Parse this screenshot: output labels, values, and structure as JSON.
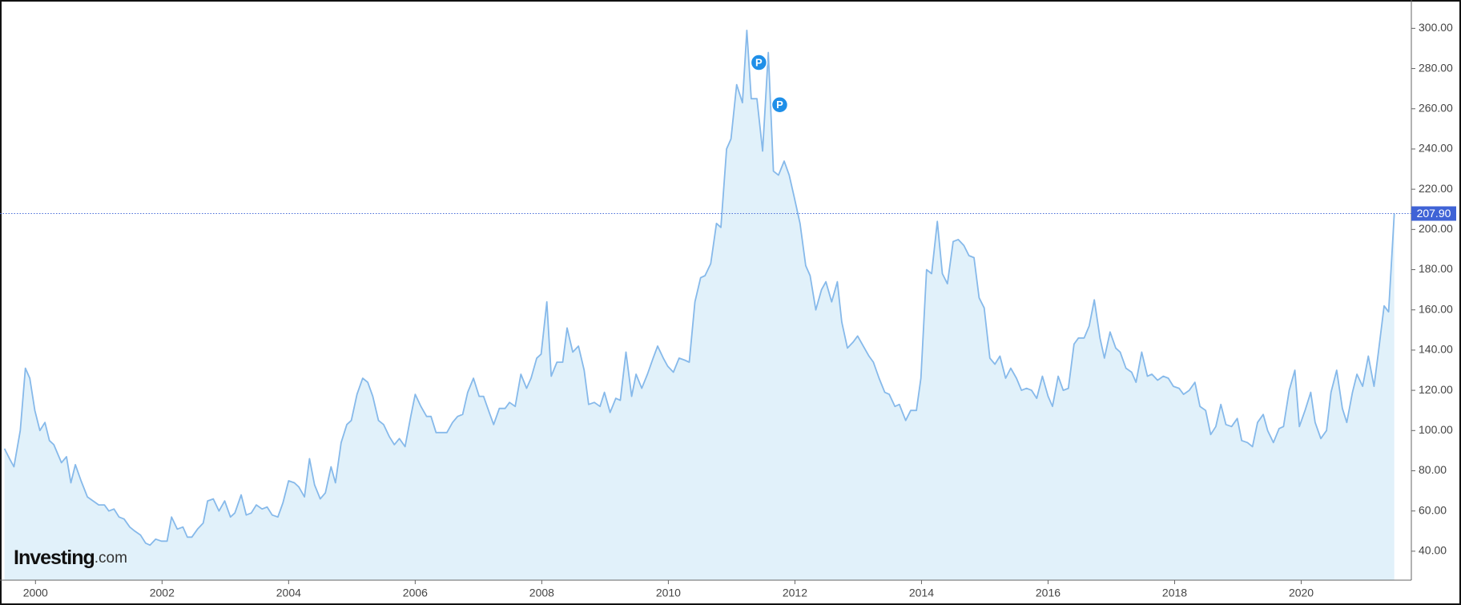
{
  "chart_data": {
    "type": "area",
    "watermark": [
      "Investing",
      ".com"
    ],
    "color": "#86b9ea",
    "fill_color": "#e1f1fa",
    "x": [
      1999.51,
      1999.59,
      1999.66,
      1999.76,
      1999.84,
      1999.91,
      1999.99,
      2000.07,
      2000.15,
      2000.22,
      2000.29,
      2000.41,
      2000.49,
      2000.56,
      2000.63,
      2000.72,
      2000.82,
      2000.91,
      2001.0,
      2001.09,
      2001.16,
      2001.24,
      2001.32,
      2001.4,
      2001.49,
      2001.57,
      2001.66,
      2001.74,
      2001.81,
      2001.9,
      2001.99,
      2002.08,
      2002.15,
      2002.24,
      2002.33,
      2002.4,
      2002.47,
      2002.56,
      2002.65,
      2002.72,
      2002.81,
      2002.9,
      2002.99,
      2003.08,
      2003.15,
      2003.25,
      2003.33,
      2003.41,
      2003.49,
      2003.58,
      2003.66,
      2003.74,
      2003.83,
      2003.91,
      2004.0,
      2004.09,
      2004.16,
      2004.25,
      2004.33,
      2004.41,
      2004.5,
      2004.58,
      2004.67,
      2004.74,
      2004.83,
      2004.92,
      2004.99,
      2005.08,
      2005.17,
      2005.25,
      2005.33,
      2005.42,
      2005.5,
      2005.59,
      2005.67,
      2005.75,
      2005.84,
      2005.93,
      2006.0,
      2006.09,
      2006.18,
      2006.25,
      2006.33,
      2006.42,
      2006.5,
      2006.59,
      2006.67,
      2006.75,
      2006.83,
      2006.92,
      2007.01,
      2007.08,
      2007.17,
      2007.24,
      2007.33,
      2007.42,
      2007.49,
      2007.58,
      2007.67,
      2007.76,
      2007.83,
      2007.92,
      2007.99,
      2008.08,
      2008.15,
      2008.24,
      2008.33,
      2008.4,
      2008.49,
      2008.58,
      2008.67,
      2008.74,
      2008.83,
      2008.92,
      2008.99,
      2009.08,
      2009.17,
      2009.24,
      2009.33,
      2009.42,
      2009.49,
      2009.58,
      2009.67,
      2009.76,
      2009.83,
      2009.92,
      2009.99,
      2010.08,
      2010.17,
      2010.26,
      2010.33,
      2010.42,
      2010.51,
      2010.58,
      2010.67,
      2010.76,
      2010.83,
      2010.92,
      2010.99,
      2011.08,
      2011.17,
      2011.24,
      2011.31,
      2011.4,
      2011.49,
      2011.58,
      2011.66,
      2011.74,
      2011.83,
      2011.91,
      2011.99,
      2012.08,
      2012.17,
      2012.24,
      2012.33,
      2012.42,
      2012.49,
      2012.58,
      2012.67,
      2012.74,
      2012.83,
      2012.92,
      2012.99,
      2013.08,
      2013.17,
      2013.24,
      2013.33,
      2013.42,
      2013.49,
      2013.58,
      2013.65,
      2013.75,
      2013.83,
      2013.92,
      2013.99,
      2014.08,
      2014.16,
      2014.25,
      2014.33,
      2014.41,
      2014.5,
      2014.58,
      2014.67,
      2014.75,
      2014.83,
      2014.91,
      2014.99,
      2015.08,
      2015.16,
      2015.24,
      2015.33,
      2015.41,
      2015.5,
      2015.58,
      2015.66,
      2015.74,
      2015.82,
      2015.91,
      2016.0,
      2016.07,
      2016.16,
      2016.24,
      2016.32,
      2016.41,
      2016.48,
      2016.57,
      2016.65,
      2016.73,
      2016.82,
      2016.89,
      2016.98,
      2017.07,
      2017.14,
      2017.23,
      2017.32,
      2017.39,
      2017.48,
      2017.57,
      2017.64,
      2017.73,
      2017.82,
      2017.9,
      2017.98,
      2018.07,
      2018.14,
      2018.23,
      2018.32,
      2018.4,
      2018.49,
      2018.57,
      2018.65,
      2018.73,
      2018.81,
      2018.9,
      2018.99,
      2019.06,
      2019.15,
      2019.23,
      2019.31,
      2019.4,
      2019.47,
      2019.56,
      2019.65,
      2019.72,
      2019.81,
      2019.9,
      2019.97,
      2020.06,
      2020.15,
      2020.22,
      2020.31,
      2020.4,
      2020.47,
      2020.56,
      2020.65,
      2020.72,
      2020.81,
      2020.88,
      2020.97,
      2021.06,
      2021.15,
      2021.22,
      2021.31,
      2021.38,
      2021.47
    ],
    "values": [
      91,
      86,
      82,
      100,
      131,
      126,
      110,
      100,
      104,
      95,
      93,
      84,
      87,
      74,
      83,
      75,
      67,
      65,
      63,
      63,
      60,
      61,
      57,
      56,
      52,
      50,
      48,
      44,
      43,
      46,
      45,
      45,
      57,
      51,
      52,
      47,
      47,
      51,
      54,
      65,
      66,
      60,
      65,
      57,
      59,
      68,
      58,
      59,
      63,
      61,
      62,
      58,
      57,
      64,
      75,
      74,
      72,
      67,
      86,
      73,
      66,
      69,
      82,
      74,
      94,
      103,
      105,
      118,
      126,
      124,
      117,
      105,
      103,
      97,
      93,
      96,
      92,
      107,
      118,
      112,
      107,
      107,
      99,
      99,
      99,
      104,
      107,
      108,
      119,
      126,
      117,
      117,
      109,
      103,
      111,
      111,
      114,
      112,
      128,
      121,
      126,
      136,
      138,
      164,
      127,
      134,
      134,
      151,
      139,
      142,
      130,
      113,
      114,
      112,
      119,
      109,
      116,
      115,
      139,
      117,
      128,
      121,
      128,
      136,
      142,
      136,
      132,
      129,
      136,
      135,
      134,
      164,
      176,
      177,
      183,
      203,
      201,
      240,
      245,
      272,
      263,
      299,
      265,
      265,
      239,
      288,
      229,
      227,
      234,
      227,
      216,
      203,
      182,
      177,
      160,
      170,
      174,
      164,
      174,
      154,
      141,
      144,
      147,
      142,
      137,
      134,
      126,
      119,
      118,
      112,
      113,
      105,
      110,
      110,
      126,
      180,
      178,
      204,
      178,
      173,
      194,
      195,
      192,
      187,
      186,
      166,
      161,
      136,
      133,
      137,
      126,
      131,
      126,
      120,
      121,
      120,
      116,
      127,
      117,
      112,
      127,
      120,
      121,
      143,
      146,
      146,
      152,
      165,
      146,
      136,
      149,
      141,
      139,
      131,
      129,
      124,
      139,
      127,
      128,
      125,
      127,
      126,
      122,
      121,
      118,
      120,
      124,
      112,
      110,
      98,
      102,
      113,
      103,
      102,
      106,
      95,
      94,
      92,
      104,
      108,
      100,
      94,
      101,
      102,
      120,
      130,
      102,
      110,
      119,
      104,
      96,
      100,
      119,
      130,
      111,
      104,
      119,
      128,
      122,
      137,
      122,
      139,
      162,
      159,
      207.9
    ],
    "last_price": {
      "value": 207.9,
      "label": "207.90"
    },
    "annotations": [
      {
        "label": "P",
        "x": 2011.43,
        "y": 283
      },
      {
        "label": "P",
        "x": 2011.76,
        "y": 262
      }
    ],
    "xlim": [
      1999.49,
      2021.74
    ],
    "ylim": [
      25.6,
      312.5
    ],
    "xticks": [
      2000,
      2002,
      2004,
      2006,
      2008,
      2010,
      2012,
      2014,
      2016,
      2018,
      2020
    ],
    "yticks": [
      {
        "value": 40,
        "label": "40.00"
      },
      {
        "value": 60,
        "label": "60.00"
      },
      {
        "value": 80,
        "label": "80.00"
      },
      {
        "value": 100,
        "label": "100.00"
      },
      {
        "value": 120,
        "label": "120.00"
      },
      {
        "value": 140,
        "label": "140.00"
      },
      {
        "value": 160,
        "label": "160.00"
      },
      {
        "value": 180,
        "label": "180.00"
      },
      {
        "value": 200,
        "label": "200.00"
      },
      {
        "value": 220,
        "label": "220.00"
      },
      {
        "value": 240,
        "label": "240.00"
      },
      {
        "value": 260,
        "label": "260.00"
      },
      {
        "value": 280,
        "label": "280.00"
      },
      {
        "value": 300,
        "label": "300.00"
      }
    ]
  }
}
